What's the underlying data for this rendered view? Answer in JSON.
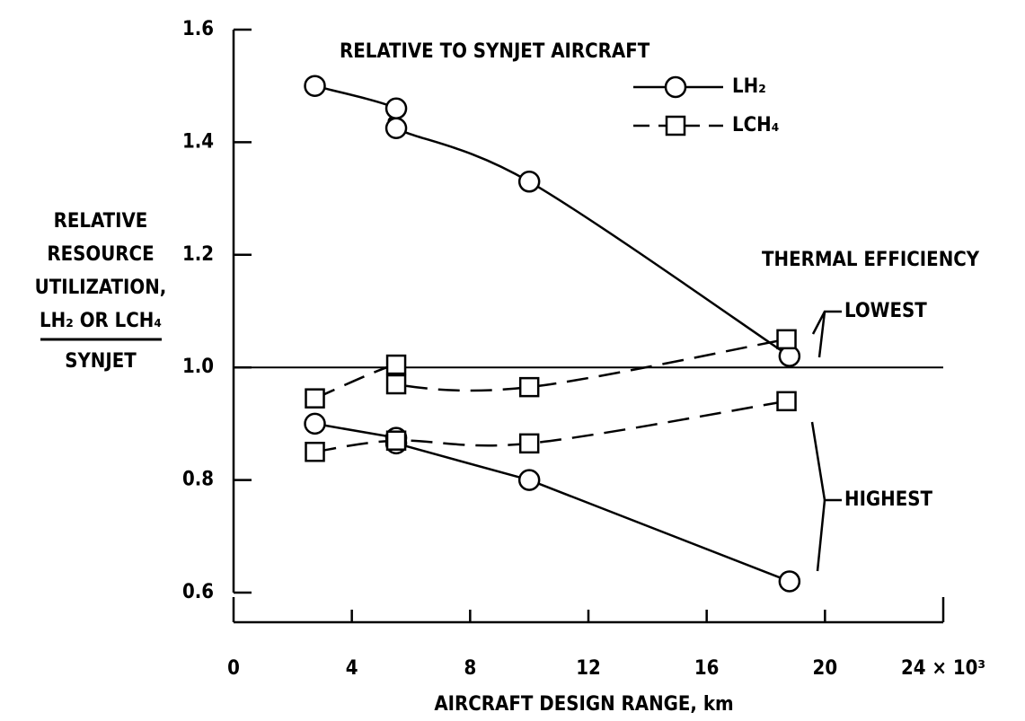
{
  "chart_data": {
    "type": "line",
    "title": "RELATIVE TO SYNJET AIRCRAFT",
    "xlabel": "AIRCRAFT DESIGN RANGE, km",
    "ylabel": {
      "lines": [
        "RELATIVE",
        "RESOURCE",
        "UTILIZATION,",
        "LH₂ OR LCH₄"
      ],
      "denominator": "SYNJET"
    },
    "xlim": [
      0,
      24
    ],
    "xticks": [
      0,
      4,
      8,
      12,
      16,
      20,
      {
        "value": 24,
        "label": "24 × 10³"
      }
    ],
    "ylim": [
      0.6,
      1.6
    ],
    "yticks": [
      0.6,
      0.8,
      {
        "value": 1.0,
        "label": "1.0"
      },
      1.2,
      1.4,
      1.6
    ],
    "reference_line": 1.0,
    "color": "#000000",
    "series": [
      {
        "name": "LH₂",
        "marker": "circle",
        "dashed": false,
        "lines": [
          {
            "x": [
              2.75,
              5.5,
              5.5,
              10,
              18.8
            ],
            "values": [
              1.5,
              1.46,
              1.425,
              1.33,
              1.02
            ],
            "smooth": true
          },
          {
            "x": [
              2.75,
              5.5,
              5.5,
              10,
              18.8
            ],
            "values": [
              0.9,
              0.875,
              0.865,
              0.8,
              0.62
            ],
            "smooth": false
          }
        ]
      },
      {
        "name": "LCH₄",
        "marker": "square",
        "dashed": true,
        "lines": [
          {
            "x": [
              2.75,
              5.5,
              5.5,
              10,
              18.7
            ],
            "values": [
              0.945,
              1.005,
              0.97,
              0.965,
              1.05
            ],
            "smooth": true
          },
          {
            "x": [
              2.75,
              5.5,
              10,
              18.7
            ],
            "values": [
              0.85,
              0.87,
              0.865,
              0.94
            ],
            "smooth": true
          }
        ]
      }
    ],
    "annotations": [
      "THERMAL EFFICIENCY",
      "LOWEST",
      "HIGHEST"
    ]
  }
}
